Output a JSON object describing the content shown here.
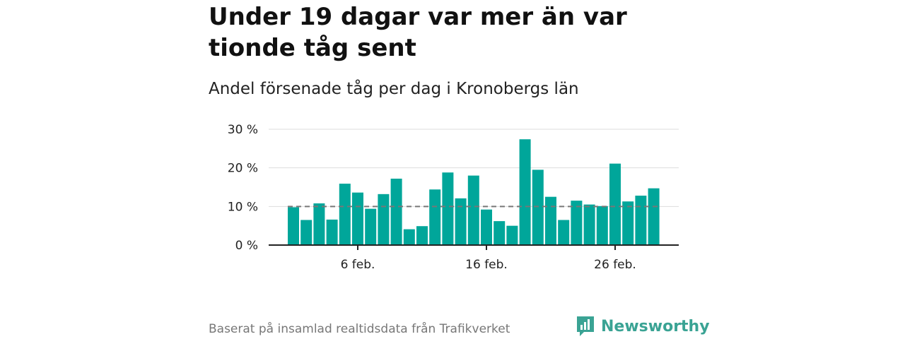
{
  "header": {
    "title": "Under 19 dagar var mer än var tionde tåg sent",
    "subtitle": "Andel försenade tåg per dag i Kronobergs län"
  },
  "footer": {
    "source": "Baserat på insamlad realtidsdata från Trafikverket",
    "brand": "Newsworthy"
  },
  "colors": {
    "bar": "#00a69a",
    "reference_line": "#777777",
    "grid": "#dddddd",
    "brand": "#3aa394"
  },
  "chart_data": {
    "type": "bar",
    "title": "Andel försenade tåg per dag i Kronobergs län",
    "xlabel": "",
    "ylabel": "",
    "ylim": [
      0,
      30
    ],
    "y_ticks": [
      {
        "value": 0,
        "label": "0 %"
      },
      {
        "value": 10,
        "label": "10 %"
      },
      {
        "value": 20,
        "label": "20 %"
      },
      {
        "value": 30,
        "label": "30 %"
      }
    ],
    "x_ticks": [
      {
        "day": 6,
        "label": "6 feb."
      },
      {
        "day": 16,
        "label": "16 feb."
      },
      {
        "day": 26,
        "label": "26 feb."
      }
    ],
    "days": [
      1,
      2,
      3,
      4,
      5,
      6,
      7,
      8,
      9,
      10,
      11,
      12,
      13,
      14,
      15,
      16,
      17,
      18,
      19,
      20,
      21,
      22,
      23,
      24,
      25,
      26,
      27,
      28,
      29
    ],
    "values": [
      9.8,
      6.5,
      10.8,
      6.6,
      15.9,
      13.6,
      9.4,
      13.2,
      17.2,
      4.1,
      4.9,
      14.4,
      18.8,
      12.1,
      18.0,
      9.2,
      6.2,
      5.0,
      27.4,
      19.5,
      12.5,
      6.5,
      11.5,
      10.5,
      10.1,
      21.1,
      11.3,
      12.8,
      14.7
    ],
    "reference_line": 10,
    "grid": true,
    "legend": "none"
  }
}
